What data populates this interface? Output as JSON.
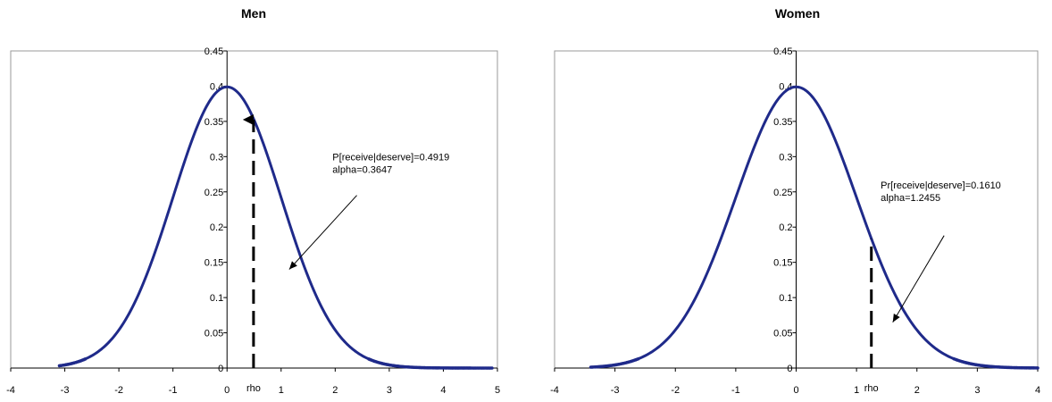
{
  "chart_data": [
    {
      "type": "scatter",
      "title": "Men",
      "xlabel": "",
      "ylabel": "",
      "xlim": [
        -4,
        5
      ],
      "ylim": [
        0,
        0.45
      ],
      "x_ticks": [
        "-4",
        "-3",
        "-2",
        "-1",
        "0",
        "1",
        "2",
        "3",
        "4",
        "5"
      ],
      "y_ticks": [
        "0",
        "0.05",
        "0.1",
        "0.15",
        "0.2",
        "0.25",
        "0.3",
        "0.35",
        "0.4",
        "0.45"
      ],
      "grid": false,
      "series": [
        {
          "distribution": "standard-normal-density",
          "x_min": -3.1,
          "x_max": 4.9,
          "color": "#1f2a8a"
        }
      ],
      "marker": {
        "label": "rho",
        "x": 0.49,
        "y": 0.355,
        "style": "dashed-arrow"
      },
      "annotation": {
        "lines": [
          "P[receive|deserve]=0.4919",
          "alpha=0.3647"
        ],
        "arrow_from": [
          2.4,
          0.245
        ],
        "arrow_to": [
          1.15,
          0.14
        ]
      }
    },
    {
      "type": "scatter",
      "title": "Women",
      "xlabel": "",
      "ylabel": "",
      "xlim": [
        -4,
        4
      ],
      "ylim": [
        0,
        0.45
      ],
      "x_ticks": [
        "-4",
        "-3",
        "-2",
        "-1",
        "0",
        "1",
        "2",
        "3",
        "4"
      ],
      "y_ticks": [
        "0",
        "0.05",
        "0.1",
        "0.15",
        "0.2",
        "0.25",
        "0.3",
        "0.35",
        "0.4",
        "0.45"
      ],
      "grid": false,
      "series": [
        {
          "distribution": "standard-normal-density",
          "x_min": -3.4,
          "x_max": 4.0,
          "color": "#1f2a8a"
        }
      ],
      "marker": {
        "label": "rho",
        "x": 1.2455,
        "y": 0.183,
        "style": "dashed-line"
      },
      "annotation": {
        "lines": [
          "Pr[receive|deserve]=0.1610",
          "alpha=1.2455"
        ],
        "arrow_from": [
          2.45,
          0.188
        ],
        "arrow_to": [
          1.6,
          0.065
        ]
      }
    }
  ]
}
